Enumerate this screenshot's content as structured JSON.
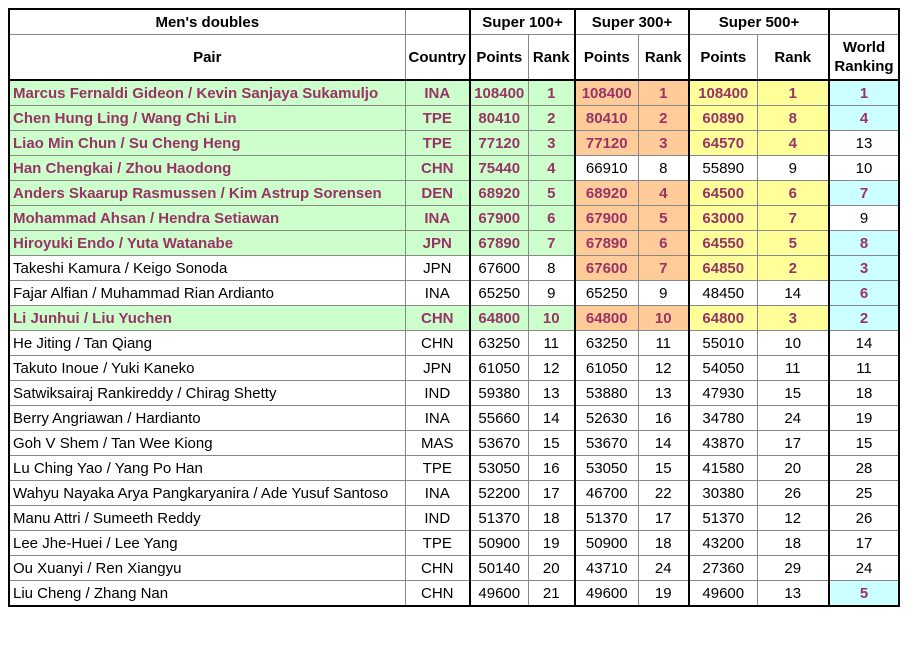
{
  "table": {
    "title": "Men's doubles",
    "groups": [
      "Super 100+",
      "Super 300+",
      "Super 500+"
    ],
    "columns": [
      "Pair",
      "Country",
      "Points",
      "Rank",
      "Points",
      "Rank",
      "Points",
      "Rank",
      "World Ranking"
    ],
    "rows": [
      {
        "cells": [
          "Marcus Fernaldi Gideon / Kevin Sanjaya Sukamuljo",
          "INA",
          108400,
          1,
          108400,
          1,
          108400,
          1,
          1
        ],
        "fills": [
          "#ccffcc",
          "#ccffcc",
          "#ccffcc",
          "#ccffcc",
          "#ffcc99",
          "#ffcc99",
          "#ffff99",
          "#ffff99",
          "#ccffff"
        ]
      },
      {
        "cells": [
          "Chen Hung Ling / Wang Chi Lin",
          "TPE",
          80410,
          2,
          80410,
          2,
          60890,
          8,
          4
        ],
        "fills": [
          "#ccffcc",
          "#ccffcc",
          "#ccffcc",
          "#ccffcc",
          "#ffcc99",
          "#ffcc99",
          "#ffff99",
          "#ffff99",
          "#ccffff"
        ]
      },
      {
        "cells": [
          "Liao Min Chun / Su Cheng Heng",
          "TPE",
          77120,
          3,
          77120,
          3,
          64570,
          4,
          13
        ],
        "fills": [
          "#ccffcc",
          "#ccffcc",
          "#ccffcc",
          "#ccffcc",
          "#ffcc99",
          "#ffcc99",
          "#ffff99",
          "#ffff99",
          "#ffffff"
        ]
      },
      {
        "cells": [
          "Han Chengkai / Zhou Haodong",
          "CHN",
          75440,
          4,
          66910,
          8,
          55890,
          9,
          10
        ],
        "fills": [
          "#ccffcc",
          "#ccffcc",
          "#ccffcc",
          "#ccffcc",
          "#ffffff",
          "#ffffff",
          "#ffffff",
          "#ffffff",
          "#ffffff"
        ]
      },
      {
        "cells": [
          "Anders Skaarup Rasmussen / Kim Astrup Sorensen",
          "DEN",
          68920,
          5,
          68920,
          4,
          64500,
          6,
          7
        ],
        "fills": [
          "#ccffcc",
          "#ccffcc",
          "#ccffcc",
          "#ccffcc",
          "#ffcc99",
          "#ffcc99",
          "#ffff99",
          "#ffff99",
          "#ccffff"
        ]
      },
      {
        "cells": [
          "Mohammad Ahsan / Hendra Setiawan",
          "INA",
          67900,
          6,
          67900,
          5,
          63000,
          7,
          9
        ],
        "fills": [
          "#ccffcc",
          "#ccffcc",
          "#ccffcc",
          "#ccffcc",
          "#ffcc99",
          "#ffcc99",
          "#ffff99",
          "#ffff99",
          "#ffffff"
        ]
      },
      {
        "cells": [
          "Hiroyuki Endo / Yuta Watanabe",
          "JPN",
          67890,
          7,
          67890,
          6,
          64550,
          5,
          8
        ],
        "fills": [
          "#ccffcc",
          "#ccffcc",
          "#ccffcc",
          "#ccffcc",
          "#ffcc99",
          "#ffcc99",
          "#ffff99",
          "#ffff99",
          "#ccffff"
        ]
      },
      {
        "cells": [
          "Takeshi Kamura / Keigo Sonoda",
          "JPN",
          67600,
          8,
          67600,
          7,
          64850,
          2,
          3
        ],
        "fills": [
          "#ffffff",
          "#ffffff",
          "#ffffff",
          "#ffffff",
          "#ffcc99",
          "#ffcc99",
          "#ffff99",
          "#ffff99",
          "#ccffff"
        ]
      },
      {
        "cells": [
          "Fajar Alfian / Muhammad Rian Ardianto",
          "INA",
          65250,
          9,
          65250,
          9,
          48450,
          14,
          6
        ],
        "fills": [
          "#ffffff",
          "#ffffff",
          "#ffffff",
          "#ffffff",
          "#ffffff",
          "#ffffff",
          "#ffffff",
          "#ffffff",
          "#ccffff"
        ]
      },
      {
        "cells": [
          "Li Junhui / Liu Yuchen",
          "CHN",
          64800,
          10,
          64800,
          10,
          64800,
          3,
          2
        ],
        "fills": [
          "#ccffcc",
          "#ccffcc",
          "#ccffcc",
          "#ccffcc",
          "#ffcc99",
          "#ffcc99",
          "#ffff99",
          "#ffff99",
          "#ccffff"
        ]
      },
      {
        "cells": [
          "He Jiting / Tan Qiang",
          "CHN",
          63250,
          11,
          63250,
          11,
          55010,
          10,
          14
        ],
        "fills": [
          "#ffffff",
          "#ffffff",
          "#ffffff",
          "#ffffff",
          "#ffffff",
          "#ffffff",
          "#ffffff",
          "#ffffff",
          "#ffffff"
        ]
      },
      {
        "cells": [
          "Takuto Inoue / Yuki Kaneko",
          "JPN",
          61050,
          12,
          61050,
          12,
          54050,
          11,
          11
        ],
        "fills": [
          "#ffffff",
          "#ffffff",
          "#ffffff",
          "#ffffff",
          "#ffffff",
          "#ffffff",
          "#ffffff",
          "#ffffff",
          "#ffffff"
        ]
      },
      {
        "cells": [
          "Satwiksairaj Rankireddy / Chirag Shetty",
          "IND",
          59380,
          13,
          53880,
          13,
          47930,
          15,
          18
        ],
        "fills": [
          "#ffffff",
          "#ffffff",
          "#ffffff",
          "#ffffff",
          "#ffffff",
          "#ffffff",
          "#ffffff",
          "#ffffff",
          "#ffffff"
        ]
      },
      {
        "cells": [
          "Berry Angriawan / Hardianto",
          "INA",
          55660,
          14,
          52630,
          16,
          34780,
          24,
          19
        ],
        "fills": [
          "#ffffff",
          "#ffffff",
          "#ffffff",
          "#ffffff",
          "#ffffff",
          "#ffffff",
          "#ffffff",
          "#ffffff",
          "#ffffff"
        ]
      },
      {
        "cells": [
          "Goh V Shem / Tan Wee Kiong",
          "MAS",
          53670,
          15,
          53670,
          14,
          43870,
          17,
          15
        ],
        "fills": [
          "#ffffff",
          "#ffffff",
          "#ffffff",
          "#ffffff",
          "#ffffff",
          "#ffffff",
          "#ffffff",
          "#ffffff",
          "#ffffff"
        ]
      },
      {
        "cells": [
          "Lu Ching Yao / Yang Po Han",
          "TPE",
          53050,
          16,
          53050,
          15,
          41580,
          20,
          28
        ],
        "fills": [
          "#ffffff",
          "#ffffff",
          "#ffffff",
          "#ffffff",
          "#ffffff",
          "#ffffff",
          "#ffffff",
          "#ffffff",
          "#ffffff"
        ]
      },
      {
        "cells": [
          "Wahyu Nayaka Arya Pangkaryanira / Ade Yusuf Santoso",
          "INA",
          52200,
          17,
          46700,
          22,
          30380,
          26,
          25
        ],
        "fills": [
          "#ffffff",
          "#ffffff",
          "#ffffff",
          "#ffffff",
          "#ffffff",
          "#ffffff",
          "#ffffff",
          "#ffffff",
          "#ffffff"
        ]
      },
      {
        "cells": [
          "Manu Attri / Sumeeth Reddy",
          "IND",
          51370,
          18,
          51370,
          17,
          51370,
          12,
          26
        ],
        "fills": [
          "#ffffff",
          "#ffffff",
          "#ffffff",
          "#ffffff",
          "#ffffff",
          "#ffffff",
          "#ffffff",
          "#ffffff",
          "#ffffff"
        ]
      },
      {
        "cells": [
          "Lee Jhe-Huei / Lee Yang",
          "TPE",
          50900,
          19,
          50900,
          18,
          43200,
          18,
          17
        ],
        "fills": [
          "#ffffff",
          "#ffffff",
          "#ffffff",
          "#ffffff",
          "#ffffff",
          "#ffffff",
          "#ffffff",
          "#ffffff",
          "#ffffff"
        ]
      },
      {
        "cells": [
          "Ou Xuanyi / Ren Xiangyu",
          "CHN",
          50140,
          20,
          43710,
          24,
          27360,
          29,
          24
        ],
        "fills": [
          "#ffffff",
          "#ffffff",
          "#ffffff",
          "#ffffff",
          "#ffffff",
          "#ffffff",
          "#ffffff",
          "#ffffff",
          "#ffffff"
        ]
      },
      {
        "cells": [
          "Liu Cheng / Zhang Nan",
          "CHN",
          49600,
          21,
          49600,
          19,
          49600,
          13,
          5
        ],
        "fills": [
          "#ffffff",
          "#ffffff",
          "#ffffff",
          "#ffffff",
          "#ffffff",
          "#ffffff",
          "#ffffff",
          "#ffffff",
          "#ccffff"
        ]
      }
    ]
  }
}
